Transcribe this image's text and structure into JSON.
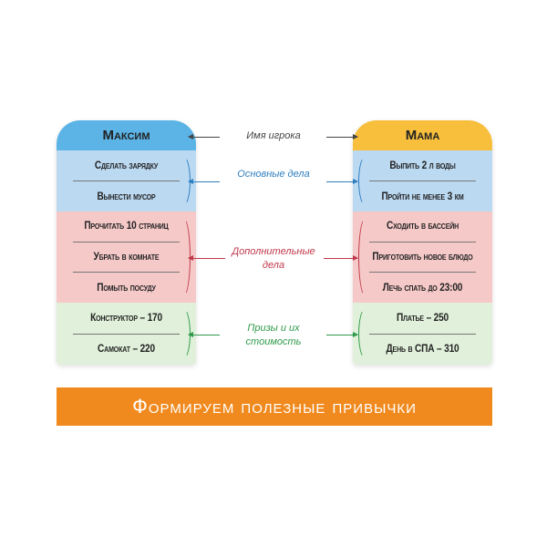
{
  "players": [
    {
      "name": "Максим",
      "header_color": "#5bb3e6",
      "main": [
        "Сделать зарядку",
        "Вынести мусор"
      ],
      "extra": [
        "Прочитать 10 страниц",
        "Убрать в комнате",
        "Помыть посуду"
      ],
      "prizes": [
        "Конструктор – 170",
        "Самокат – 220"
      ]
    },
    {
      "name": "Мама",
      "header_color": "#f7bf3c",
      "main": [
        "Выпить 2 л воды",
        "Пройти не менее 3 км"
      ],
      "extra": [
        "Сходить в бассейн",
        "Приготовить новое блюдо",
        "Лечь спать до 23:00"
      ],
      "prizes": [
        "Платье – 250",
        "День в СПА – 310"
      ]
    }
  ],
  "labels": {
    "name": "Имя игрока",
    "main": "Основные дела",
    "extra": "Дополнительные дела",
    "prizes": "Призы и их стоимость"
  },
  "colors": {
    "name": "#444444",
    "main": "#2f7fc0",
    "extra": "#c0394b",
    "prizes": "#2f9a4a"
  },
  "banner": "Формируем полезные привычки"
}
